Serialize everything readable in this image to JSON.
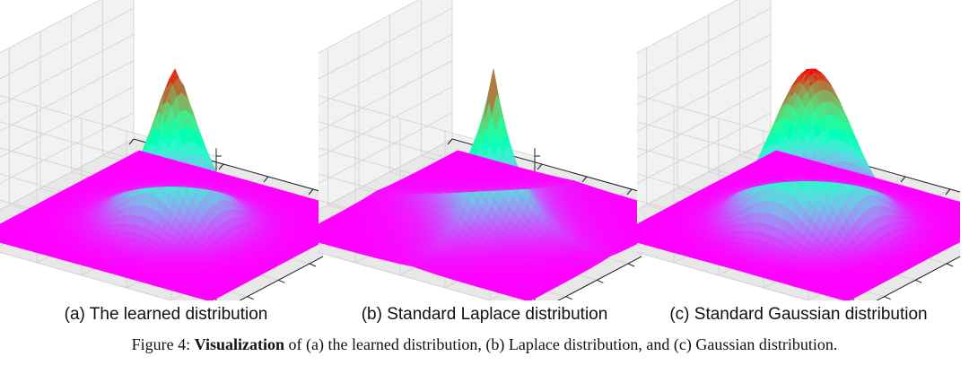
{
  "figure": {
    "caption_label": "Figure 4:",
    "caption_bold": "Visualization",
    "caption_rest": "of (a) the learned distribution, (b) Laplace distribution, and (c) Gaussian distribution."
  },
  "panels": [
    {
      "id": "a",
      "caption": "(a) The learned distribution"
    },
    {
      "id": "b",
      "caption": "(b) Standard Laplace distribution"
    },
    {
      "id": "c",
      "caption": "(c) Standard Gaussian distribution"
    }
  ],
  "chart_data": [
    {
      "type": "surface",
      "title": "(a) The learned distribution",
      "shape": "learned",
      "colormap": "rainbow",
      "grid": true,
      "axis_ticks_labeled": false
    },
    {
      "type": "surface",
      "title": "(b) Standard Laplace distribution",
      "shape": "laplace",
      "colormap": "rainbow",
      "grid": true,
      "axis_ticks_labeled": false
    },
    {
      "type": "surface",
      "title": "(c) Standard Gaussian distribution",
      "shape": "gaussian",
      "colormap": "rainbow",
      "grid": true,
      "axis_ticks_labeled": false
    }
  ]
}
